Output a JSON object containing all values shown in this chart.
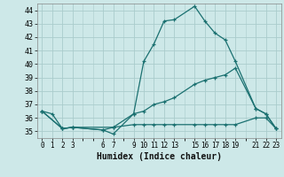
{
  "xlabel": "Humidex (Indice chaleur)",
  "bg_color": "#cde8e8",
  "grid_color": "#aacccc",
  "line_color": "#1a7070",
  "xlim": [
    -0.5,
    23.5
  ],
  "ylim": [
    34.5,
    44.5
  ],
  "xticks": [
    0,
    1,
    2,
    3,
    6,
    7,
    9,
    10,
    11,
    12,
    13,
    15,
    16,
    17,
    18,
    19,
    21,
    22,
    23
  ],
  "yticks": [
    35,
    36,
    37,
    38,
    39,
    40,
    41,
    42,
    43,
    44
  ],
  "series1": {
    "x": [
      0,
      1,
      2,
      3,
      6,
      7,
      9,
      10,
      11,
      12,
      13,
      15,
      16,
      17,
      18,
      19,
      21,
      22,
      23
    ],
    "y": [
      36.5,
      36.3,
      35.2,
      35.3,
      35.1,
      34.8,
      36.3,
      40.2,
      41.5,
      43.2,
      43.3,
      44.3,
      43.2,
      42.3,
      41.8,
      40.2,
      36.7,
      36.3,
      35.2
    ]
  },
  "series2": {
    "x": [
      0,
      2,
      3,
      7,
      9,
      10,
      11,
      12,
      13,
      15,
      16,
      17,
      18,
      19,
      21,
      22,
      23
    ],
    "y": [
      36.5,
      35.2,
      35.3,
      35.3,
      36.3,
      36.5,
      37.0,
      37.2,
      37.5,
      38.5,
      38.8,
      39.0,
      39.2,
      39.7,
      36.7,
      36.3,
      35.2
    ]
  },
  "series3": {
    "x": [
      0,
      2,
      3,
      6,
      7,
      9,
      10,
      11,
      12,
      13,
      15,
      16,
      17,
      18,
      19,
      21,
      22,
      23
    ],
    "y": [
      36.5,
      35.2,
      35.3,
      35.1,
      35.3,
      35.5,
      35.5,
      35.5,
      35.5,
      35.5,
      35.5,
      35.5,
      35.5,
      35.5,
      35.5,
      36.0,
      36.0,
      35.2
    ]
  }
}
